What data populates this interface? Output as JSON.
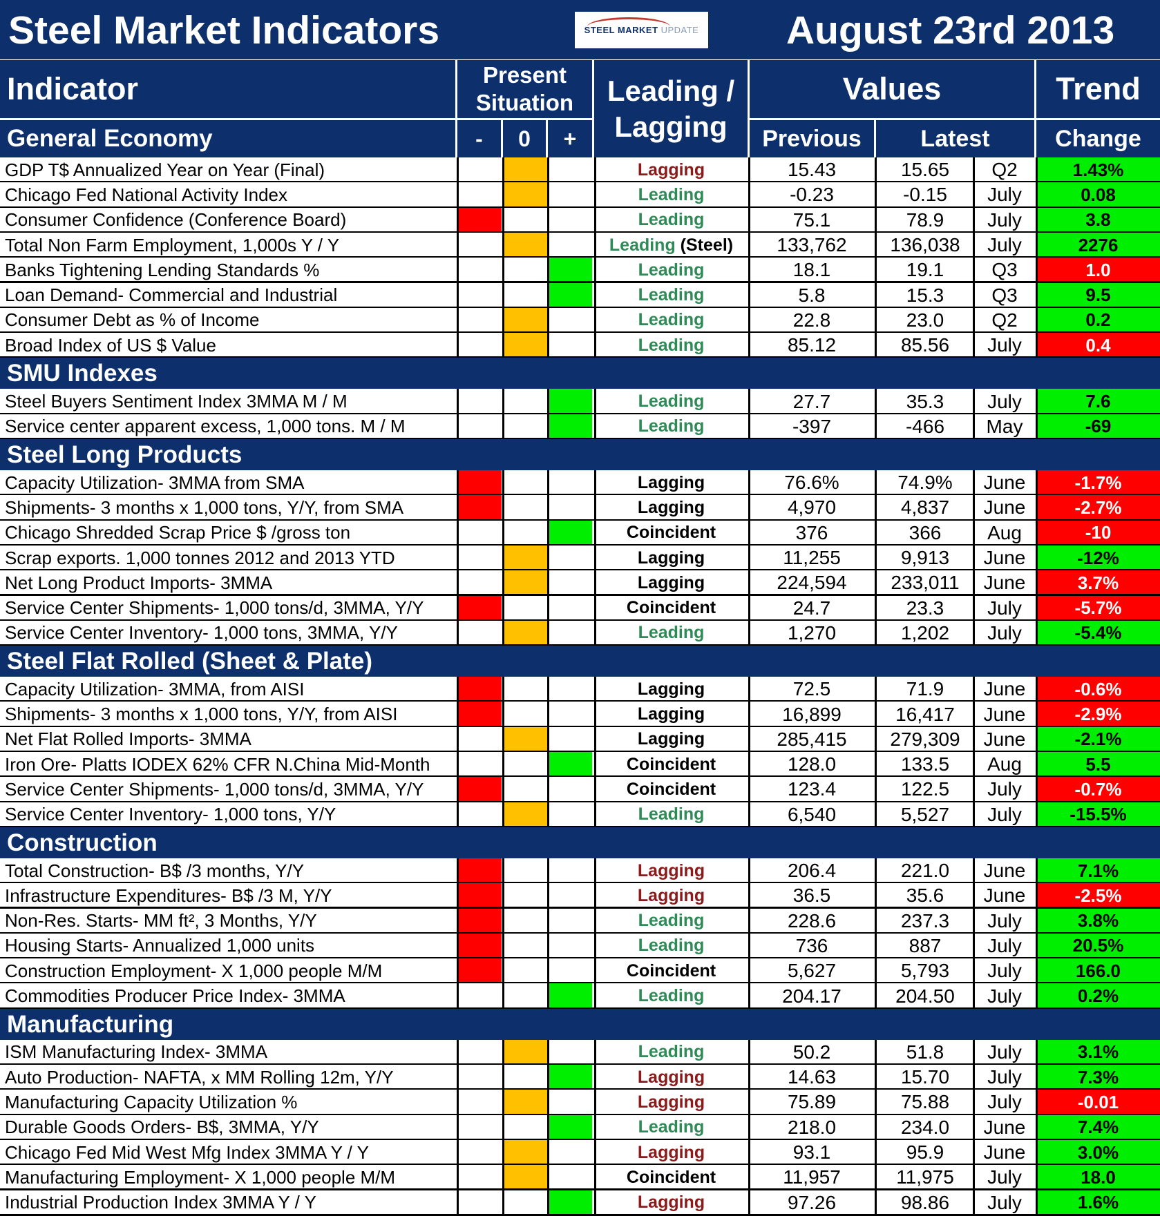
{
  "header": {
    "title": "Steel Market Indicators",
    "date": "August 23rd 2013",
    "logo_text": "STEEL MARKET",
    "logo_text2": "UPDATE",
    "col_indicator": "Indicator",
    "col_present_line1": "Present",
    "col_present_line2": "Situation",
    "col_leading_line1": "Leading /",
    "col_leading_line2": "Lagging",
    "col_values": "Values",
    "col_trend": "Trend",
    "col_previous": "Previous",
    "col_latest": "Latest",
    "col_change": "Change",
    "sym_minus": "-",
    "sym_zero": "0",
    "sym_plus": "+"
  },
  "colors": {
    "navy": "#0d2f6b",
    "red": "#ff0000",
    "amber": "#ffc000",
    "green": "#00ee00",
    "lagging_dark": "#8b1a1a",
    "leading_green": "#2e8b57",
    "neutral": "#000000"
  },
  "sections": [
    {
      "title": "General Economy",
      "rows": [
        {
          "indicator": "GDP T$ Annualized Year on Year (Final)",
          "status": 0,
          "type": "Lagging",
          "type_color": "lagging_dark",
          "type_suffix": "",
          "previous": "15.43",
          "latest": "15.65",
          "period": "Q2",
          "change": "1.43%",
          "change_color": "green"
        },
        {
          "indicator": "Chicago Fed National Activity Index",
          "status": 0,
          "type": "Leading",
          "type_color": "leading_green",
          "type_suffix": "",
          "previous": "-0.23",
          "latest": "-0.15",
          "period": "July",
          "change": "0.08",
          "change_color": "green"
        },
        {
          "indicator": "Consumer Confidence (Conference Board)",
          "status": -1,
          "type": "Leading",
          "type_color": "leading_green",
          "type_suffix": "",
          "previous": "75.1",
          "latest": "78.9",
          "period": "July",
          "change": "3.8",
          "change_color": "green"
        },
        {
          "indicator": "Total Non Farm Employment, 1,000s Y / Y",
          "status": 0,
          "type": "Leading",
          "type_color": "leading_green",
          "type_suffix": " (Steel)",
          "previous": "133,762",
          "latest": "136,038",
          "period": "July",
          "change": "2276",
          "change_color": "green"
        },
        {
          "indicator": "Banks Tightening Lending Standards %",
          "status": 1,
          "type": "Leading",
          "type_color": "leading_green",
          "type_suffix": "",
          "previous": "18.1",
          "latest": "19.1",
          "period": "Q3",
          "change": "1.0",
          "change_color": "red"
        },
        {
          "indicator": "Loan Demand- Commercial and Industrial",
          "status": 1,
          "type": "Leading",
          "type_color": "leading_green",
          "type_suffix": "",
          "previous": "5.8",
          "latest": "15.3",
          "period": "Q3",
          "change": "9.5",
          "change_color": "green"
        },
        {
          "indicator": "Consumer Debt as % of Income",
          "status": 0,
          "type": "Leading",
          "type_color": "leading_green",
          "type_suffix": "",
          "previous": "22.8",
          "latest": "23.0",
          "period": "Q2",
          "change": "0.2",
          "change_color": "green"
        },
        {
          "indicator": "Broad Index of US $ Value",
          "status": 0,
          "type": "Leading",
          "type_color": "leading_green",
          "type_suffix": "",
          "previous": "85.12",
          "latest": "85.56",
          "period": "July",
          "change": "0.4",
          "change_color": "red"
        }
      ]
    },
    {
      "title": "SMU Indexes",
      "rows": [
        {
          "indicator": "Steel Buyers Sentiment Index 3MMA M / M",
          "status": 1,
          "type": "Leading",
          "type_color": "leading_green",
          "type_suffix": "",
          "previous": "27.7",
          "latest": "35.3",
          "period": "July",
          "change": "7.6",
          "change_color": "green"
        },
        {
          "indicator": "Service center apparent excess, 1,000 tons. M / M",
          "status": 1,
          "type": "Leading",
          "type_color": "leading_green",
          "type_suffix": "",
          "previous": "-397",
          "latest": "-466",
          "period": "May",
          "change": "-69",
          "change_color": "green"
        }
      ]
    },
    {
      "title": "Steel Long Products",
      "rows": [
        {
          "indicator": "Capacity Utilization- 3MMA from SMA",
          "status": -1,
          "type": "Lagging",
          "type_color": "neutral",
          "type_suffix": "",
          "previous": "76.6%",
          "latest": "74.9%",
          "period": "June",
          "change": "-1.7%",
          "change_color": "red"
        },
        {
          "indicator": "Shipments- 3 months x 1,000 tons, Y/Y, from SMA",
          "status": -1,
          "type": "Lagging",
          "type_color": "neutral",
          "type_suffix": "",
          "previous": "4,970",
          "latest": "4,837",
          "period": "June",
          "change": "-2.7%",
          "change_color": "red"
        },
        {
          "indicator": "Chicago Shredded Scrap Price $ /gross ton",
          "status": 1,
          "type": "Coincident",
          "type_color": "neutral",
          "type_suffix": "",
          "previous": "376",
          "latest": "366",
          "period": "Aug",
          "change": "-10",
          "change_color": "red"
        },
        {
          "indicator": "Scrap exports. 1,000 tonnes 2012 and 2013 YTD",
          "status": 0,
          "type": "Lagging",
          "type_color": "neutral",
          "type_suffix": "",
          "previous": "11,255",
          "latest": "9,913",
          "period": "June",
          "change": "-12%",
          "change_color": "green"
        },
        {
          "indicator": "Net Long Product Imports- 3MMA",
          "status": 0,
          "type": "Lagging",
          "type_color": "neutral",
          "type_suffix": "",
          "previous": "224,594",
          "latest": "233,011",
          "period": "June",
          "change": "3.7%",
          "change_color": "red"
        },
        {
          "indicator": "Service Center Shipments- 1,000 tons/d, 3MMA, Y/Y",
          "status": -1,
          "type": "Coincident",
          "type_color": "neutral",
          "type_suffix": "",
          "previous": "24.7",
          "latest": "23.3",
          "period": "July",
          "change": "-5.7%",
          "change_color": "red"
        },
        {
          "indicator": "Service Center Inventory- 1,000 tons, 3MMA, Y/Y",
          "status": 0,
          "type": "Leading",
          "type_color": "leading_green",
          "type_suffix": "",
          "previous": "1,270",
          "latest": "1,202",
          "period": "July",
          "change": "-5.4%",
          "change_color": "green"
        }
      ]
    },
    {
      "title": "Steel Flat Rolled (Sheet & Plate)",
      "rows": [
        {
          "indicator": "Capacity Utilization- 3MMA, from AISI",
          "status": -1,
          "type": "Lagging",
          "type_color": "neutral",
          "type_suffix": "",
          "previous": "72.5",
          "latest": "71.9",
          "period": "June",
          "change": "-0.6%",
          "change_color": "red"
        },
        {
          "indicator": "Shipments- 3 months x 1,000 tons, Y/Y, from AISI",
          "status": -1,
          "type": "Lagging",
          "type_color": "neutral",
          "type_suffix": "",
          "previous": "16,899",
          "latest": "16,417",
          "period": "June",
          "change": "-2.9%",
          "change_color": "red"
        },
        {
          "indicator": "Net Flat Rolled Imports- 3MMA",
          "status": 0,
          "type": "Lagging",
          "type_color": "neutral",
          "type_suffix": "",
          "previous": "285,415",
          "latest": "279,309",
          "period": "June",
          "change": "-2.1%",
          "change_color": "green"
        },
        {
          "indicator": "Iron Ore- Platts IODEX 62% CFR N.China Mid-Month",
          "status": 1,
          "type": "Coincident",
          "type_color": "neutral",
          "type_suffix": "",
          "previous": "128.0",
          "latest": "133.5",
          "period": "Aug",
          "change": "5.5",
          "change_color": "green"
        },
        {
          "indicator": "Service Center Shipments- 1,000 tons/d, 3MMA, Y/Y",
          "status": -1,
          "type": "Coincident",
          "type_color": "neutral",
          "type_suffix": "",
          "previous": "123.4",
          "latest": "122.5",
          "period": "July",
          "change": "-0.7%",
          "change_color": "red"
        },
        {
          "indicator": "Service Center Inventory- 1,000 tons, Y/Y",
          "status": 0,
          "type": "Leading",
          "type_color": "leading_green",
          "type_suffix": "",
          "previous": "6,540",
          "latest": "5,527",
          "period": "July",
          "change": "-15.5%",
          "change_color": "green"
        }
      ]
    },
    {
      "title": "Construction",
      "rows": [
        {
          "indicator": "Total Construction- B$ /3 months, Y/Y",
          "status": -1,
          "type": "Lagging",
          "type_color": "lagging_dark",
          "type_suffix": "",
          "previous": "206.4",
          "latest": "221.0",
          "period": "June",
          "change": "7.1%",
          "change_color": "green"
        },
        {
          "indicator": "Infrastructure Expenditures- B$ /3 M, Y/Y",
          "status": -1,
          "type": "Lagging",
          "type_color": "lagging_dark",
          "type_suffix": "",
          "previous": "36.5",
          "latest": "35.6",
          "period": "June",
          "change": "-2.5%",
          "change_color": "red"
        },
        {
          "indicator": "Non-Res. Starts- MM ft², 3 Months, Y/Y",
          "status": -1,
          "type": "Leading",
          "type_color": "leading_green",
          "type_suffix": "",
          "previous": "228.6",
          "latest": "237.3",
          "period": "July",
          "change": "3.8%",
          "change_color": "green"
        },
        {
          "indicator": "Housing Starts- Annualized 1,000 units",
          "status": -1,
          "type": "Leading",
          "type_color": "leading_green",
          "type_suffix": "",
          "previous": "736",
          "latest": "887",
          "period": "July",
          "change": "20.5%",
          "change_color": "green"
        },
        {
          "indicator": "Construction Employment- X 1,000 people M/M",
          "status": -1,
          "type": "Coincident",
          "type_color": "neutral",
          "type_suffix": "",
          "previous": "5,627",
          "latest": "5,793",
          "period": "July",
          "change": "166.0",
          "change_color": "green"
        },
        {
          "indicator": "Commodities Producer Price Index- 3MMA",
          "status": 1,
          "type": "Leading",
          "type_color": "leading_green",
          "type_suffix": "",
          "previous": "204.17",
          "latest": "204.50",
          "period": "July",
          "change": "0.2%",
          "change_color": "green"
        }
      ]
    },
    {
      "title": "Manufacturing",
      "rows": [
        {
          "indicator": "ISM Manufacturing Index- 3MMA",
          "status": 0,
          "type": "Leading",
          "type_color": "leading_green",
          "type_suffix": "",
          "previous": "50.2",
          "latest": "51.8",
          "period": "July",
          "change": "3.1%",
          "change_color": "green"
        },
        {
          "indicator": "Auto Production- NAFTA, x MM Rolling 12m, Y/Y",
          "status": 1,
          "type": "Lagging",
          "type_color": "lagging_dark",
          "type_suffix": "",
          "previous": "14.63",
          "latest": "15.70",
          "period": "July",
          "change": "7.3%",
          "change_color": "green"
        },
        {
          "indicator": "Manufacturing Capacity Utilization %",
          "status": 0,
          "type": "Lagging",
          "type_color": "lagging_dark",
          "type_suffix": "",
          "previous": "75.89",
          "latest": "75.88",
          "period": "July",
          "change": "-0.01",
          "change_color": "red"
        },
        {
          "indicator": "Durable Goods Orders- B$, 3MMA, Y/Y",
          "status": 1,
          "type": "Leading",
          "type_color": "leading_green",
          "type_suffix": "",
          "previous": "218.0",
          "latest": "234.0",
          "period": "June",
          "change": "7.4%",
          "change_color": "green"
        },
        {
          "indicator": "Chicago Fed Mid West Mfg Index 3MMA Y / Y",
          "status": 0,
          "type": "Lagging",
          "type_color": "lagging_dark",
          "type_suffix": "",
          "previous": "93.1",
          "latest": "95.9",
          "period": "June",
          "change": "3.0%",
          "change_color": "green"
        },
        {
          "indicator": "Manufacturing Employment- X 1,000 people M/M",
          "status": 0,
          "type": "Coincident",
          "type_color": "neutral",
          "type_suffix": "",
          "previous": "11,957",
          "latest": "11,975",
          "period": "July",
          "change": "18.0",
          "change_color": "green"
        },
        {
          "indicator": "Industrial Production Index 3MMA Y / Y",
          "status": 1,
          "type": "Lagging",
          "type_color": "lagging_dark",
          "type_suffix": "",
          "previous": "97.26",
          "latest": "98.86",
          "period": "July",
          "change": "1.6%",
          "change_color": "green"
        }
      ]
    }
  ]
}
